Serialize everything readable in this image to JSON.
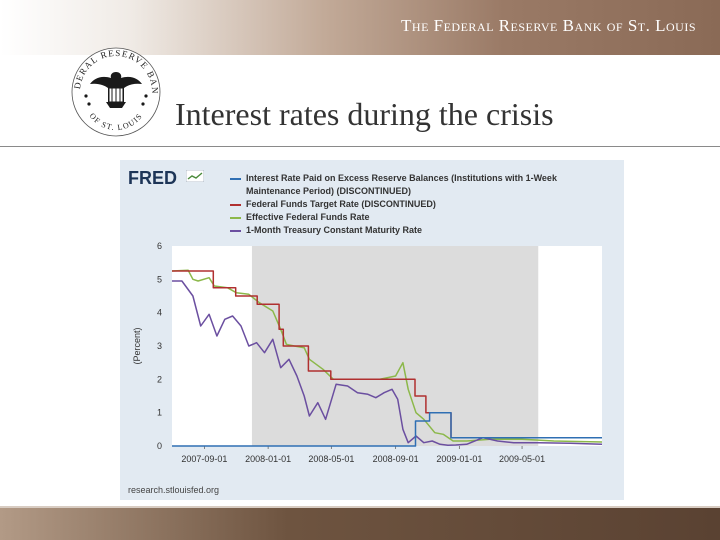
{
  "header": {
    "org_name": "The Federal Reserve Bank of St. Louis",
    "seal_top_text": "FEDERAL RESERVE BANK",
    "seal_bottom_text": "OF ST. LOUIS"
  },
  "slide": {
    "title": "Interest rates during the crisis"
  },
  "chart": {
    "logo": "FRED",
    "source": "research.stlouisfed.org",
    "colors": {
      "panel_bg": "#e2eaf2",
      "plot_bg": "#ffffff",
      "recession": "#dcdcdc",
      "series": [
        "#2f6fb3",
        "#b03030",
        "#8cb84a",
        "#6b4fa0"
      ]
    }
  },
  "chart_data": {
    "type": "line",
    "title": "",
    "xlabel": "",
    "ylabel": "(Percent)",
    "ylim": [
      0,
      6
    ],
    "y_ticks": [
      "0",
      "1",
      "2",
      "3",
      "4",
      "5",
      "6"
    ],
    "xlim": [
      "2007-07-01",
      "2009-10-01"
    ],
    "x_ticks": [
      "2007-09-01",
      "2008-01-01",
      "2008-05-01",
      "2008-09-01",
      "2009-01-01",
      "2009-05-01"
    ],
    "grid": false,
    "legend": "top",
    "recession": [
      "2007-12-01",
      "2009-06-01"
    ],
    "series": [
      {
        "name": "Interest Rate Paid on Excess Reserve Balances (Institutions with 1-Week Maintenance Period) (DISCONTINUED)",
        "x": [
          "2007-07-01",
          "2008-10-09",
          "2008-10-09",
          "2008-11-05",
          "2008-11-05",
          "2008-12-16",
          "2008-12-16",
          "2009-10-01"
        ],
        "y": [
          0,
          0,
          0.75,
          0.75,
          1.0,
          1.0,
          0.25,
          0.25
        ]
      },
      {
        "name": "Federal Funds Target Rate (DISCONTINUED)",
        "x": [
          "2007-07-01",
          "2007-09-18",
          "2007-09-18",
          "2007-10-31",
          "2007-10-31",
          "2007-12-11",
          "2007-12-11",
          "2008-01-22",
          "2008-01-22",
          "2008-01-30",
          "2008-01-30",
          "2008-03-18",
          "2008-03-18",
          "2008-04-30",
          "2008-04-30",
          "2008-10-08",
          "2008-10-08",
          "2008-10-29",
          "2008-10-29",
          "2008-12-16",
          "2008-12-16",
          "2009-10-01"
        ],
        "y": [
          5.25,
          5.25,
          4.75,
          4.75,
          4.5,
          4.5,
          4.25,
          4.25,
          3.5,
          3.5,
          3.0,
          3.0,
          2.25,
          2.25,
          2.0,
          2.0,
          1.5,
          1.5,
          1.0,
          1.0,
          0.25,
          0.25
        ]
      },
      {
        "name": "Effective Federal Funds Rate",
        "x": [
          "2007-07-01",
          "2007-08-01",
          "2007-08-10",
          "2007-08-20",
          "2007-09-10",
          "2007-09-20",
          "2007-10-15",
          "2007-11-01",
          "2007-11-25",
          "2007-12-15",
          "2008-01-10",
          "2008-01-25",
          "2008-02-05",
          "2008-02-20",
          "2008-03-10",
          "2008-03-20",
          "2008-04-15",
          "2008-05-05",
          "2008-06-01",
          "2008-07-01",
          "2008-08-01",
          "2008-09-01",
          "2008-09-15",
          "2008-09-25",
          "2008-10-10",
          "2008-10-25",
          "2008-11-15",
          "2008-12-01",
          "2008-12-20",
          "2009-01-15",
          "2009-03-01",
          "2009-05-01",
          "2009-07-01",
          "2009-10-01"
        ],
        "y": [
          5.25,
          5.27,
          5.0,
          4.95,
          5.05,
          4.8,
          4.75,
          4.6,
          4.55,
          4.3,
          4.05,
          3.5,
          3.05,
          3.0,
          2.95,
          2.6,
          2.3,
          2.0,
          2.0,
          2.0,
          2.0,
          2.1,
          2.5,
          1.7,
          1.0,
          0.8,
          0.4,
          0.35,
          0.15,
          0.15,
          0.2,
          0.2,
          0.15,
          0.12
        ]
      },
      {
        "name": "1-Month Treasury Constant Maturity Rate",
        "x": [
          "2007-07-01",
          "2007-07-20",
          "2007-08-10",
          "2007-08-25",
          "2007-09-10",
          "2007-09-25",
          "2007-10-10",
          "2007-10-25",
          "2007-11-10",
          "2007-11-25",
          "2007-12-10",
          "2007-12-25",
          "2008-01-10",
          "2008-01-25",
          "2008-02-10",
          "2008-02-25",
          "2008-03-10",
          "2008-03-20",
          "2008-04-05",
          "2008-04-20",
          "2008-05-10",
          "2008-06-01",
          "2008-06-20",
          "2008-07-10",
          "2008-07-25",
          "2008-08-10",
          "2008-08-25",
          "2008-09-05",
          "2008-09-15",
          "2008-09-25",
          "2008-10-10",
          "2008-10-25",
          "2008-11-10",
          "2008-11-25",
          "2008-12-10",
          "2008-12-25",
          "2009-01-15",
          "2009-02-15",
          "2009-03-15",
          "2009-04-15",
          "2009-06-01",
          "2009-08-01",
          "2009-10-01"
        ],
        "y": [
          4.95,
          4.95,
          4.5,
          3.6,
          3.95,
          3.3,
          3.8,
          3.9,
          3.6,
          3.0,
          3.1,
          2.8,
          3.2,
          2.35,
          2.6,
          2.1,
          1.5,
          0.9,
          1.3,
          0.8,
          1.85,
          1.8,
          1.6,
          1.55,
          1.45,
          1.6,
          1.7,
          1.4,
          0.5,
          0.1,
          0.3,
          0.1,
          0.15,
          0.05,
          0.02,
          0.03,
          0.05,
          0.25,
          0.15,
          0.1,
          0.1,
          0.08,
          0.05
        ]
      }
    ]
  }
}
